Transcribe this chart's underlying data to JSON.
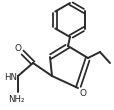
{
  "bg_color": "#ffffff",
  "bond_color": "#2a2a2a",
  "line_width": 1.4,
  "figsize": [
    1.15,
    1.1
  ],
  "dpi": 100,
  "xlim": [
    0,
    115
  ],
  "ylim": [
    0,
    110
  ]
}
